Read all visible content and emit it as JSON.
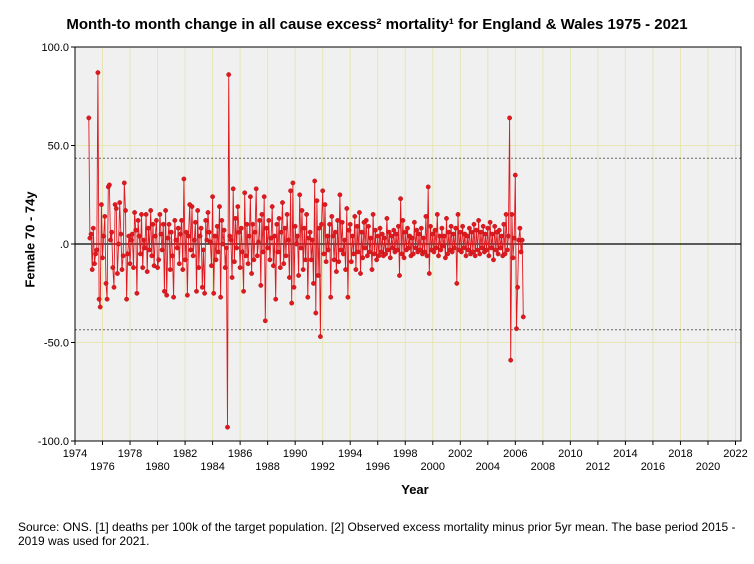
{
  "chart_data": {
    "type": "line",
    "title": "Month-to month change in all cause excess² mortality¹  for England & Wales 1975 - 2021",
    "xlabel": "Year",
    "ylabel": "Female 70 - 74y",
    "xlim": [
      1974,
      2022.4
    ],
    "ylim": [
      -100,
      100
    ],
    "x_ticks": [
      1974,
      1976,
      1978,
      1980,
      1982,
      1984,
      1986,
      1988,
      1990,
      1992,
      1994,
      1996,
      1998,
      2000,
      2002,
      2004,
      2006,
      2008,
      2010,
      2012,
      2014,
      2016,
      2018,
      2020,
      2022
    ],
    "y_ticks": [
      -100,
      -50,
      0,
      50,
      100
    ],
    "y_tick_labels": [
      "-100.0",
      "-50.0",
      ".0",
      "50.0",
      "100.0"
    ],
    "reference_lines": [
      {
        "y": 0,
        "style": "solid",
        "color": "#000000"
      },
      {
        "y": 43.5,
        "style": "dotted",
        "color": "#666666"
      },
      {
        "y": -43.5,
        "style": "dotted",
        "color": "#666666"
      }
    ],
    "grid": true,
    "colors": {
      "series": "#e0191f",
      "plot_bg": "#f0f0f0",
      "grid": "#e6e6b4"
    },
    "series": [
      {
        "name": "",
        "start_year": 1975.0,
        "step_years": 0.08333,
        "values": [
          64,
          3,
          5,
          -13,
          8,
          -10,
          -5,
          -3,
          87,
          -28,
          -32,
          20,
          -7,
          4,
          14,
          -20,
          -28,
          29,
          30,
          2,
          6,
          -12,
          -22,
          20,
          18,
          -15,
          0,
          21,
          5,
          -13,
          -6,
          31,
          17,
          -28,
          -5,
          4,
          -10,
          2,
          5,
          -12,
          16,
          7,
          -25,
          12,
          4,
          -5,
          15,
          -12,
          2,
          -2,
          15,
          -14,
          8,
          -3,
          17,
          -6,
          10,
          -11,
          4,
          12,
          -12,
          -8,
          15,
          5,
          -3,
          10,
          -24,
          17,
          -26,
          3,
          10,
          -13,
          6,
          -6,
          -27,
          12,
          2,
          -2,
          8,
          -10,
          5,
          12,
          -13,
          33,
          -8,
          6,
          -26,
          4,
          20,
          -3,
          19,
          -6,
          2,
          11,
          -24,
          17,
          -12,
          4,
          8,
          -22,
          -3,
          -25,
          12,
          2,
          16,
          6,
          1,
          -11,
          24,
          -25,
          4,
          -8,
          9,
          -4,
          19,
          -27,
          12,
          0,
          7,
          -12,
          -2,
          -93,
          86,
          4,
          2,
          -17,
          28,
          -9,
          13,
          -2,
          19,
          6,
          -12,
          8,
          -4,
          -24,
          26,
          -6,
          10,
          -10,
          4,
          24,
          -15,
          10,
          -8,
          6,
          28,
          -6,
          1,
          12,
          -21,
          15,
          -4,
          24,
          -39,
          8,
          -2,
          12,
          -8,
          3,
          19,
          -11,
          4,
          -28,
          10,
          -4,
          13,
          -12,
          6,
          21,
          -10,
          8,
          -6,
          15,
          2,
          -17,
          27,
          -30,
          31,
          -22,
          9,
          0,
          4,
          -16,
          25,
          -2,
          17,
          -13,
          8,
          -8,
          15,
          -27,
          3,
          6,
          -8,
          2,
          -20,
          32,
          -35,
          22,
          -16,
          8,
          -47,
          10,
          27,
          -5,
          20,
          -9,
          4,
          -3,
          10,
          -27,
          14,
          4,
          -8,
          6,
          -14,
          12,
          -9,
          25,
          -3,
          11,
          -5,
          2,
          -13,
          18,
          -27,
          7,
          10,
          -9,
          4,
          -5,
          14,
          -13,
          9,
          -4,
          16,
          -15,
          6,
          -7,
          11,
          -2,
          12,
          -6,
          9,
          -4,
          3,
          -13,
          15,
          -5,
          7,
          -8,
          4,
          -6,
          8,
          -4,
          5,
          -6,
          3,
          -5,
          13,
          -3,
          6,
          -7,
          4,
          -2,
          7,
          -4,
          5,
          -3,
          9,
          -16,
          23,
          -5,
          12,
          -7,
          6,
          -3,
          8,
          -2,
          4,
          -6,
          3,
          -5,
          11,
          -2,
          7,
          -4,
          5,
          -3,
          8,
          -5,
          3,
          -4,
          14,
          -6,
          29,
          -15,
          9,
          -3,
          5,
          -4,
          7,
          -2,
          15,
          -6,
          4,
          -3,
          8,
          -1,
          4,
          -7,
          13,
          -5,
          6,
          -3,
          9,
          -4,
          5,
          -2,
          8,
          -20,
          15,
          -3,
          6,
          -4,
          9,
          -2,
          5,
          -6,
          4,
          -3,
          8,
          -5,
          6,
          -4,
          10,
          -6,
          7,
          -3,
          12,
          -5,
          6,
          -2,
          9,
          -4,
          5,
          -3,
          8,
          -6,
          11,
          -2,
          5,
          -8,
          9,
          -3,
          6,
          -5,
          7,
          -2,
          4,
          -6,
          10,
          -5,
          15,
          -3,
          4,
          64,
          -59,
          15,
          -7,
          3,
          35,
          -43,
          -22,
          2,
          8,
          -4,
          2,
          -37
        ]
      }
    ]
  },
  "source_note": "Source: ONS. [1] deaths per 100k of the target population. [2] Observed excess mortality minus prior 5yr mean. The base period 2015 - 2019 was used for 2021."
}
